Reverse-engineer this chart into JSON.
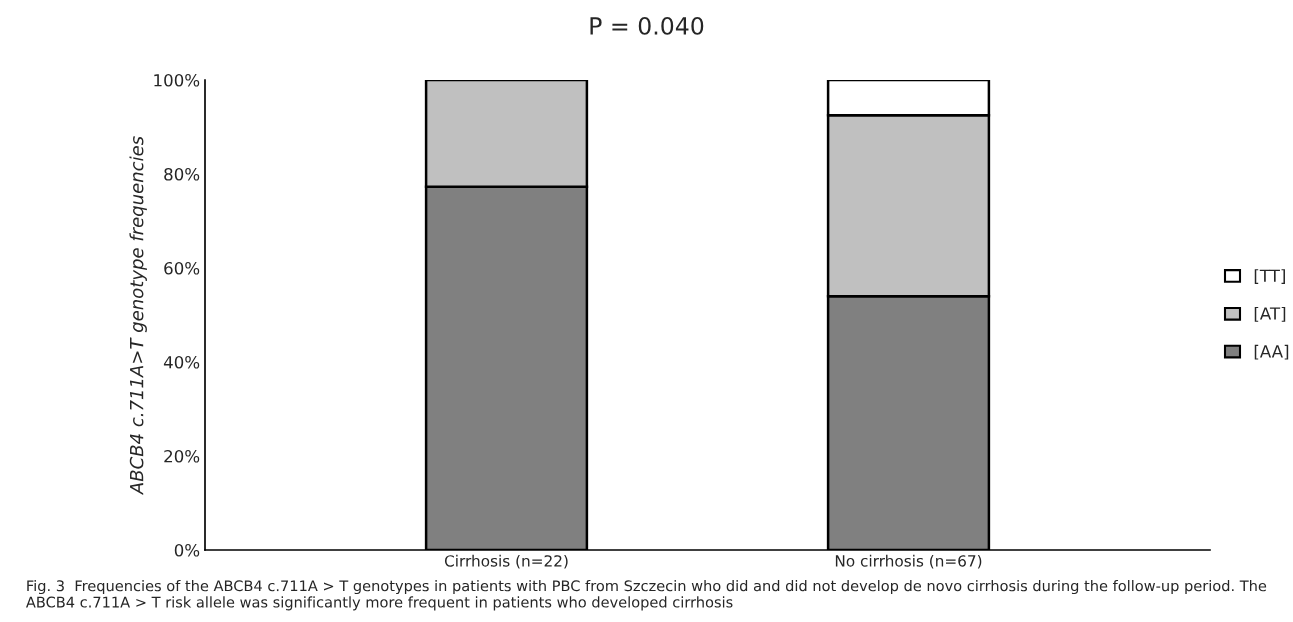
{
  "chart_data": {
    "type": "bar",
    "title": "P = 0.040",
    "ylabel": "ABCB4 c.711A>T genotype frequencies",
    "categories": [
      "Cirrhosis (n=22)",
      "No cirrhosis (n=67)"
    ],
    "stacked": true,
    "series": [
      {
        "name": "[AA]",
        "color": "#808080",
        "values": [
          77.3,
          54
        ]
      },
      {
        "name": "[AT]",
        "color": "#c0c0c0",
        "values": [
          22.7,
          38.5
        ]
      },
      {
        "name": "[TT]",
        "color": "#ffffff",
        "values": [
          null,
          7.5
        ]
      }
    ],
    "ylim": [
      0,
      100
    ],
    "yticks": [
      {
        "value": 0,
        "label": "0%"
      },
      {
        "value": 20,
        "label": "20%"
      },
      {
        "value": 40,
        "label": "40%"
      },
      {
        "value": 60,
        "label": "60%"
      },
      {
        "value": 80,
        "label": "80%"
      },
      {
        "value": 100,
        "label": "100%"
      }
    ],
    "grid": false,
    "legend": "right",
    "annotations": [
      "Fig. 3  Frequencies of the ABCB4 c.711A > T genotypes in patients with PBC from Szczecin who did and did not develop de novo cirrhosis during the follow-up period. The ABCB4 c.711A > T risk allele was significantly more frequent in patients who developed cirrhosis"
    ]
  }
}
